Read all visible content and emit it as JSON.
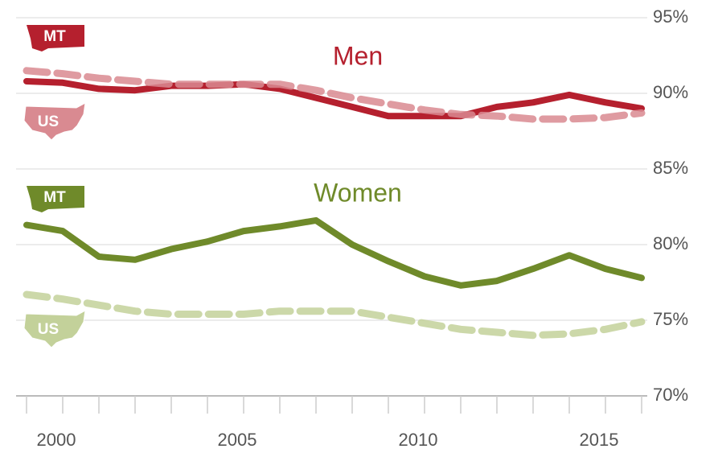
{
  "chart_data": {
    "type": "line",
    "annotations": [
      {
        "text": "Men",
        "color": "#b5202e"
      },
      {
        "text": "Women",
        "color": "#6f8a2a"
      }
    ],
    "x": [
      1999,
      2000,
      2001,
      2002,
      2003,
      2004,
      2005,
      2006,
      2007,
      2008,
      2009,
      2010,
      2011,
      2012,
      2013,
      2014,
      2015,
      2016
    ],
    "series": [
      {
        "name": "MT",
        "group": "Men",
        "color": "#b5202e",
        "dashed": false,
        "values": [
          90.8,
          90.7,
          90.3,
          90.2,
          90.5,
          90.5,
          90.6,
          90.3,
          89.7,
          89.1,
          88.5,
          88.5,
          88.5,
          89.1,
          89.4,
          89.9,
          89.4,
          89.0
        ]
      },
      {
        "name": "US",
        "group": "Men",
        "color": "#d98a91",
        "dashed": true,
        "values": [
          91.5,
          91.3,
          91.0,
          90.8,
          90.6,
          90.6,
          90.6,
          90.6,
          90.2,
          89.7,
          89.3,
          88.9,
          88.6,
          88.5,
          88.3,
          88.3,
          88.4,
          88.7
        ]
      },
      {
        "name": "MT",
        "group": "Women",
        "color": "#6f8a2a",
        "dashed": false,
        "values": [
          81.3,
          80.9,
          79.2,
          79.0,
          79.7,
          80.2,
          80.9,
          81.2,
          81.6,
          80.0,
          78.9,
          77.9,
          77.3,
          77.6,
          78.4,
          79.3,
          78.4,
          77.8
        ]
      },
      {
        "name": "US",
        "group": "Women",
        "color": "#c3d19a",
        "dashed": true,
        "values": [
          76.7,
          76.4,
          76.0,
          75.6,
          75.4,
          75.4,
          75.4,
          75.6,
          75.6,
          75.6,
          75.2,
          74.8,
          74.4,
          74.2,
          74.0,
          74.1,
          74.4,
          74.9
        ]
      }
    ],
    "xlim": [
      1999,
      2016
    ],
    "xticks": [
      2000,
      2005,
      2010,
      2015
    ],
    "xminorticks": [
      1999,
      2000,
      2001,
      2002,
      2003,
      2004,
      2005,
      2006,
      2007,
      2008,
      2009,
      2010,
      2011,
      2012,
      2013,
      2014,
      2015,
      2016
    ],
    "ylim": [
      70,
      95
    ],
    "yticks": [
      {
        "value": 70,
        "label": "70%"
      },
      {
        "value": 75,
        "label": "75%"
      },
      {
        "value": 80,
        "label": "80%"
      },
      {
        "value": 85,
        "label": "85%"
      },
      {
        "value": 90,
        "label": "90%"
      },
      {
        "value": 95,
        "label": "95%"
      }
    ],
    "grid": true
  }
}
